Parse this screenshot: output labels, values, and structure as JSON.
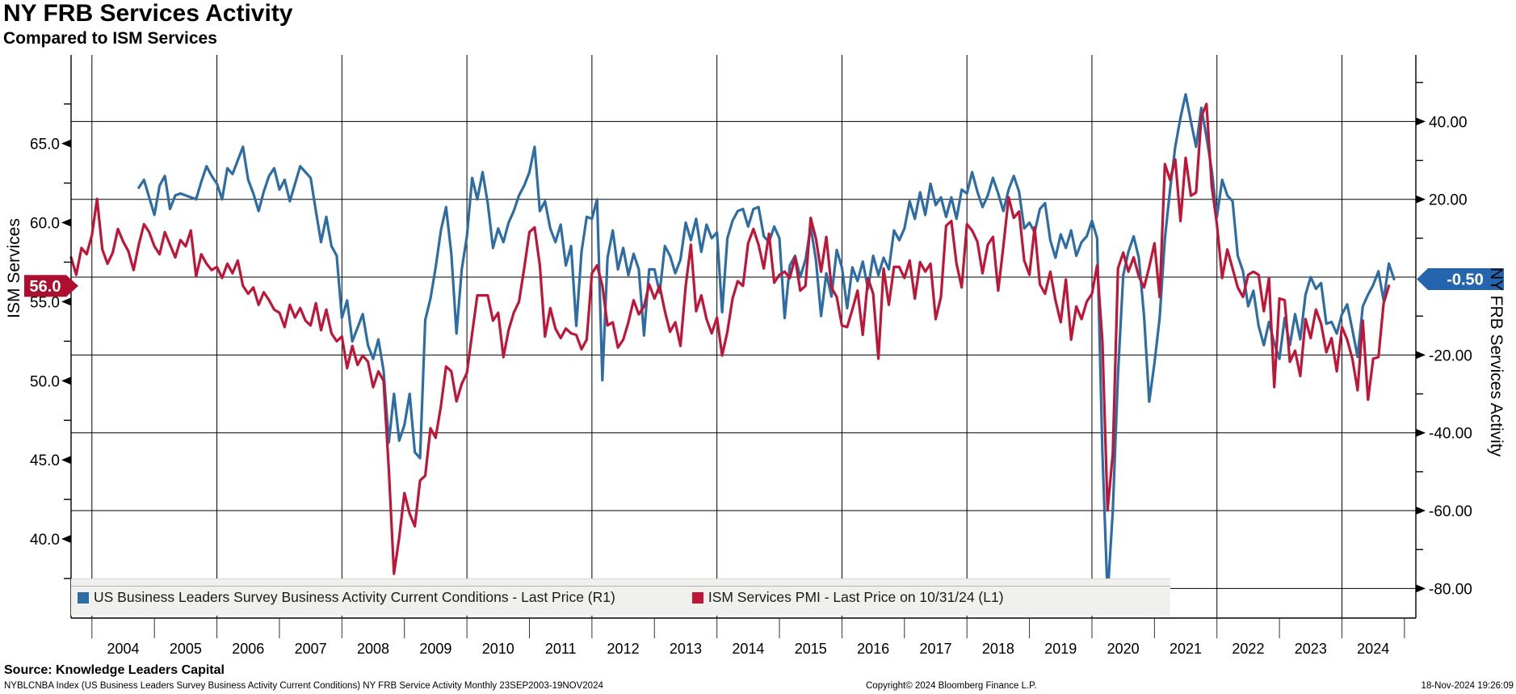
{
  "header": {
    "title": "NY FRB Services Activity",
    "subtitle": "Compared to ISM Services"
  },
  "legend": {
    "items": [
      {
        "label": "US Business Leaders Survey Business Activity Current Conditions - Last Price (R1)",
        "color": "#2e6da4"
      },
      {
        "label": "ISM Services PMI - Last Price on 10/31/24 (L1)",
        "color": "#bf1537"
      }
    ]
  },
  "footer": {
    "source": "Source: Knowledge Leaders Capital",
    "description": "NYBLCNBA Index (US Business Leaders Survey Business Activity Current Conditions) NY FRB Service Activity  Monthly 23SEP2003-19NOV2024",
    "copyright": "Copyright© 2024 Bloomberg Finance L.P.",
    "datetime": "18-Nov-2024 19:26:09"
  },
  "chart_data": {
    "type": "line",
    "title": "NY FRB Services Activity",
    "subtitle": "Compared to ISM Services",
    "frequency": "monthly",
    "x_start": "2003-09",
    "x_end": "2024-11",
    "x_axis": {
      "year_labels": [
        2004,
        2005,
        2006,
        2007,
        2008,
        2009,
        2010,
        2011,
        2012,
        2013,
        2014,
        2015,
        2016,
        2017,
        2018,
        2019,
        2020,
        2021,
        2022,
        2023,
        2024
      ],
      "gridline_years": [
        2004,
        2006,
        2008,
        2010,
        2012,
        2014,
        2016,
        2018,
        2020,
        2022,
        2024
      ]
    },
    "left_axis": {
      "label": "ISM Services",
      "min": 35.0,
      "max": 70.6,
      "ticks": [
        {
          "v": 65,
          "label": "65.0"
        },
        {
          "v": 60,
          "label": "60.0"
        },
        {
          "v": 55,
          "label": "55.0"
        },
        {
          "v": 50,
          "label": "50.0"
        },
        {
          "v": 45,
          "label": "45.0"
        },
        {
          "v": 40,
          "label": "40.0"
        }
      ],
      "minor_ticks": [
        67.5,
        62.5,
        57.5,
        52.5,
        47.5,
        42.5,
        37.5
      ],
      "badge": {
        "value": 56.0,
        "label": "56.0",
        "color": "#ac102e"
      }
    },
    "right_axis": {
      "label": "NY FRB Services Activity",
      "min": -87.6,
      "max": 57.1,
      "ticks": [
        {
          "v": 40,
          "label": "40.00"
        },
        {
          "v": 20,
          "label": "20.00"
        },
        {
          "v": -20,
          "label": "-20.00"
        },
        {
          "v": -40,
          "label": "-40.00"
        },
        {
          "v": -60,
          "label": "-60.00"
        },
        {
          "v": -80,
          "label": "-80.00"
        }
      ],
      "minor_ticks": [
        50,
        30,
        10,
        -10,
        -30,
        -50,
        -70
      ],
      "gridlines": [
        40,
        20,
        0,
        -20,
        -40,
        -60,
        -80
      ],
      "badge": {
        "value": -0.5,
        "label": "-0.50",
        "color": "#2565ae"
      }
    },
    "series": [
      {
        "name": "US Business Leaders Survey Business Activity Current Conditions",
        "legend_label": "US Business Leaders Survey Business Activity Current Conditions - Last Price (R1)",
        "axis": "right",
        "color": "#2e6da4",
        "start": "2004-10",
        "values": [
          23.0,
          25.0,
          20.5,
          16.0,
          23.5,
          26.0,
          17.5,
          21.0,
          21.5,
          21.0,
          20.5,
          20.0,
          24.5,
          28.5,
          26.0,
          24.0,
          20.0,
          28.0,
          26.5,
          30.0,
          33.5,
          25.0,
          21.5,
          17.0,
          22.0,
          26.0,
          28.0,
          22.5,
          25.0,
          19.5,
          24.0,
          28.5,
          27.0,
          25.5,
          17.0,
          9.0,
          15.5,
          8.0,
          5.5,
          -10.5,
          -6.0,
          -16.5,
          -13.0,
          -9.5,
          -17.5,
          -21.0,
          -16.0,
          -24.0,
          -42.5,
          -30.0,
          -42.0,
          -38.0,
          -30.0,
          -45.0,
          -46.5,
          -11.0,
          -5.5,
          2.5,
          12.0,
          18.0,
          6.0,
          -14.5,
          2.0,
          10.5,
          25.5,
          20.0,
          27.0,
          19.0,
          7.5,
          12.5,
          9.0,
          14.0,
          17.0,
          21.0,
          23.5,
          27.0,
          33.5,
          17.0,
          19.5,
          12.5,
          9.0,
          13.5,
          3.0,
          8.0,
          -12.5,
          6.5,
          15.5,
          15.0,
          20.0,
          -26.5,
          5.0,
          12.0,
          2.0,
          7.5,
          0.5,
          6.0,
          2.0,
          -15.0,
          2.0,
          2.0,
          -4.0,
          8.0,
          5.5,
          1.0,
          4.5,
          14.0,
          9.5,
          15.0,
          6.5,
          13.5,
          10.0,
          11.5,
          -9.0,
          10.0,
          14.5,
          17.0,
          17.5,
          13.0,
          17.5,
          18.0,
          10.5,
          9.0,
          13.0,
          10.0,
          -10.5,
          3.0,
          5.5,
          0.0,
          4.5,
          13.0,
          4.5,
          -10.0,
          1.0,
          -5.0,
          7.0,
          2.5,
          -8.0,
          2.5,
          -1.0,
          4.0,
          -3.0,
          5.5,
          0.5,
          5.0,
          2.0,
          12.0,
          9.5,
          12.5,
          19.5,
          15.0,
          21.8,
          16.0,
          24.0,
          18.5,
          20.5,
          15.5,
          20.5,
          15.0,
          22.5,
          21.5,
          27.0,
          22.0,
          18.0,
          21.0,
          25.5,
          21.5,
          17.0,
          22.5,
          26.0,
          22.0,
          12.5,
          14.0,
          11.5,
          17.5,
          19.0,
          9.5,
          5.0,
          11.0,
          7.5,
          12.0,
          5.5,
          9.0,
          10.5,
          14.5,
          10.0,
          -45.0,
          -82.0,
          -60.0,
          -25.0,
          0.5,
          6.5,
          10.5,
          5.0,
          -10.0,
          -32.0,
          -22.0,
          -10.5,
          10.0,
          22.5,
          33.5,
          41.0,
          47.0,
          40.0,
          33.5,
          43.5,
          36.0,
          27.5,
          15.5,
          25.0,
          21.0,
          19.5,
          5.5,
          1.5,
          -7.5,
          -3.5,
          -12.5,
          -17.5,
          -11.5,
          -17.0,
          -21.0,
          -10.5,
          -17.5,
          -9.5,
          -16.0,
          -4.5,
          0.0,
          -3.0,
          -1.5,
          -12.0,
          -11.5,
          -14.5,
          -9.5,
          -7.0,
          -13.5,
          -20.5,
          -7.5,
          -4.5,
          -2.0,
          1.5,
          -6.0,
          3.5,
          -0.5
        ]
      },
      {
        "name": "ISM Services PMI",
        "legend_label": "ISM Services PMI - Last Price on 10/31/24 (L1)",
        "axis": "left",
        "color": "#bf1537",
        "start": "2003-09",
        "values": [
          57.8,
          56.7,
          58.4,
          58.0,
          59.2,
          61.5,
          58.3,
          57.4,
          58.1,
          59.6,
          58.8,
          58.2,
          57.0,
          58.6,
          59.9,
          59.4,
          58.5,
          58.0,
          59.4,
          58.6,
          57.8,
          58.9,
          58.5,
          59.5,
          56.6,
          58.0,
          57.4,
          57.0,
          57.2,
          56.5,
          57.4,
          56.8,
          57.6,
          56.0,
          55.5,
          55.9,
          54.8,
          55.6,
          55.1,
          54.5,
          54.3,
          53.4,
          54.8,
          54.0,
          54.6,
          53.8,
          53.5,
          54.9,
          53.2,
          54.5,
          53.0,
          52.5,
          52.8,
          50.8,
          52.2,
          51.0,
          51.6,
          51.2,
          49.6,
          50.6,
          50.0,
          44.4,
          37.8,
          40.1,
          42.9,
          41.6,
          40.8,
          43.7,
          44.0,
          47.0,
          46.4,
          48.4,
          50.9,
          50.6,
          48.7,
          49.8,
          50.5,
          53.0,
          55.4,
          55.4,
          55.4,
          53.8,
          54.3,
          51.5,
          53.2,
          54.3,
          55.0,
          57.1,
          59.4,
          59.7,
          57.3,
          52.8,
          54.6,
          53.3,
          52.7,
          53.3,
          53.0,
          52.9,
          52.0,
          52.6,
          56.8,
          57.3,
          56.0,
          53.5,
          53.7,
          52.1,
          52.6,
          53.7,
          55.1,
          54.2,
          54.7,
          56.1,
          55.2,
          56.0,
          54.4,
          53.1,
          53.7,
          52.2,
          56.0,
          58.6,
          54.4,
          55.4,
          53.9,
          53.0,
          54.0,
          51.6,
          53.1,
          55.2,
          56.3,
          56.0,
          58.7,
          59.6,
          58.6,
          57.1,
          59.3,
          56.2,
          56.7,
          56.9,
          56.5,
          57.8,
          55.7,
          56.0,
          60.3,
          59.0,
          56.9,
          59.1,
          55.9,
          55.3,
          53.5,
          53.4,
          54.5,
          55.7,
          52.9,
          56.5,
          55.5,
          51.4,
          57.1,
          54.8,
          57.2,
          57.2,
          56.5,
          57.6,
          55.2,
          57.5,
          56.9,
          57.4,
          53.9,
          55.3,
          59.8,
          60.1,
          57.4,
          55.9,
          59.9,
          59.5,
          58.8,
          56.8,
          58.6,
          59.1,
          55.7,
          58.5,
          61.6,
          60.3,
          60.7,
          57.6,
          56.7,
          59.7,
          56.1,
          55.5,
          56.9,
          55.1,
          53.7,
          56.4,
          52.6,
          54.7,
          53.9,
          55.0,
          55.5,
          57.3,
          52.5,
          41.8,
          45.4,
          57.1,
          58.1,
          56.9,
          57.8,
          56.6,
          55.9,
          57.2,
          58.7,
          55.3,
          63.7,
          62.7,
          64.0,
          60.1,
          64.1,
          61.7,
          61.9,
          66.7,
          67.5,
          62.3,
          59.9,
          56.5,
          58.3,
          57.1,
          55.9,
          55.3,
          56.7,
          56.9,
          56.7,
          54.4,
          56.5,
          49.6,
          55.2,
          55.1,
          51.2,
          51.9,
          50.3,
          53.9,
          52.7,
          54.5,
          53.6,
          51.8,
          52.7,
          50.6,
          53.4,
          52.6,
          51.4,
          49.4,
          53.8,
          48.8,
          51.4,
          51.5,
          54.9,
          56.0
        ]
      }
    ]
  }
}
